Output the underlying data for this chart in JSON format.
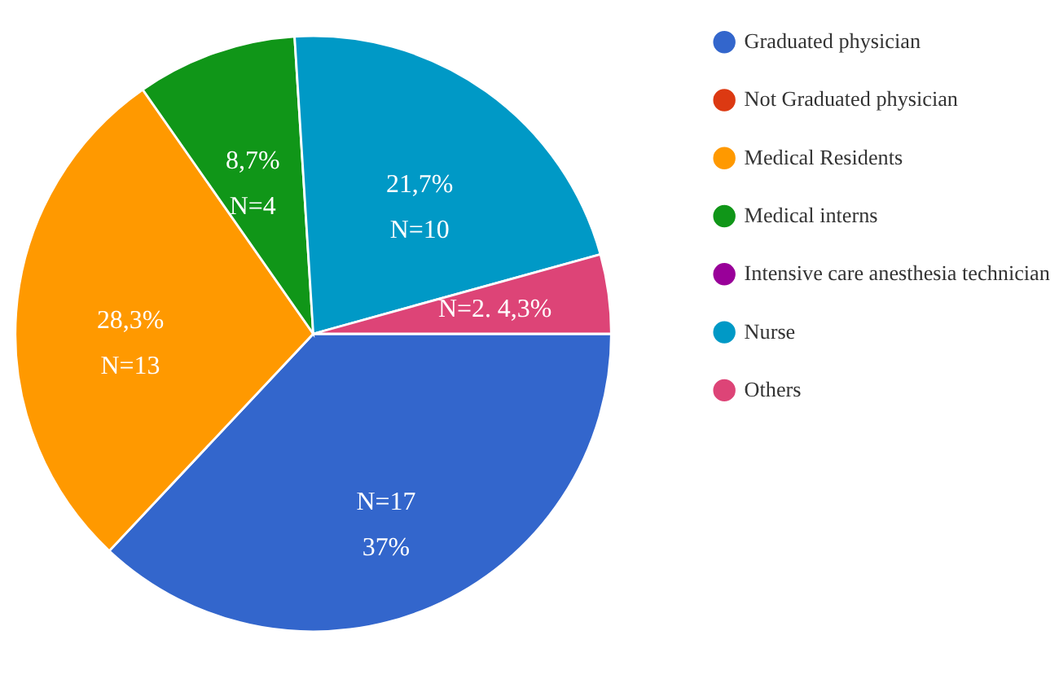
{
  "chart_data": {
    "type": "pie",
    "categories": [
      "Graduated physician",
      "Not Graduated physician",
      "Medical Residents",
      "Medical interns",
      "Intensive care anesthesia technician",
      "Nurse",
      "Others"
    ],
    "values": [
      37,
      0,
      28.3,
      8.7,
      0,
      21.7,
      4.3
    ],
    "colors": [
      "#3366cc",
      "#dc3912",
      "#ff9900",
      "#109618",
      "#990099",
      "#0099c6",
      "#dd4477"
    ],
    "value_labels": [
      "N=17\n37%",
      null,
      "28,3%\nN=13",
      "8,7%\nN=4",
      null,
      "21,7%\nN=10",
      "N=2. 4,3%"
    ],
    "legend": "right"
  }
}
